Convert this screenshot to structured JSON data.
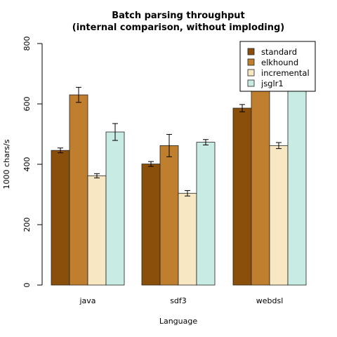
{
  "chart_data": {
    "type": "bar",
    "title": "Batch parsing throughput",
    "subtitle": "(internal comparison, without imploding)",
    "xlabel": "Language",
    "ylabel": "1000 chars/s",
    "ylim": [
      0,
      800
    ],
    "yticks": [
      0,
      200,
      400,
      600,
      800
    ],
    "categories": [
      "java",
      "sdf3",
      "webdsl"
    ],
    "legend_position": "top-right",
    "series": [
      {
        "name": "standard",
        "color": "#8b4f0c",
        "values": [
          446,
          401,
          586
        ],
        "errors": [
          8,
          8,
          12
        ]
      },
      {
        "name": "elkhound",
        "color": "#c07f2e",
        "values": [
          630,
          462,
          760
        ],
        "errors": [
          25,
          37,
          35
        ]
      },
      {
        "name": "incremental",
        "color": "#f7e7c3",
        "values": [
          362,
          304,
          462
        ],
        "errors": [
          7,
          9,
          10
        ]
      },
      {
        "name": "jsglr1",
        "color": "#c8ebe4",
        "values": [
          507,
          473,
          712
        ],
        "errors": [
          28,
          9,
          30
        ]
      }
    ]
  }
}
